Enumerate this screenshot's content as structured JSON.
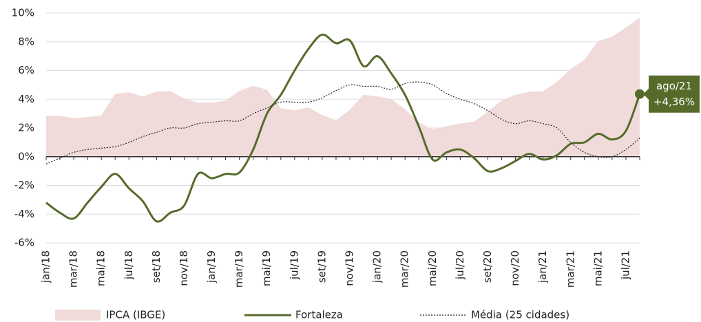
{
  "chart_data": {
    "type": "line",
    "categories": [
      "jan/18",
      null,
      "mar/18",
      null,
      "mai/18",
      null,
      "jul/18",
      null,
      "set/18",
      null,
      "nov/18",
      null,
      "jan/19",
      null,
      "mar/19",
      null,
      "mai/19",
      null,
      "jul/19",
      null,
      "set/19",
      null,
      "nov/19",
      null,
      "jan/20",
      null,
      "mar/20",
      null,
      "mai/20",
      null,
      "jul/20",
      null,
      "set/20",
      null,
      "nov/20",
      null,
      "jan/21",
      null,
      "mar/21",
      null,
      "mai/21",
      null,
      "jul/21",
      null
    ],
    "series": [
      {
        "name": "IPCA (IBGE)",
        "style": "area",
        "color": "#f0dada",
        "values": [
          2.86,
          2.84,
          2.68,
          2.76,
          2.86,
          4.39,
          4.48,
          4.19,
          4.53,
          4.56,
          4.05,
          3.75,
          3.78,
          3.89,
          4.58,
          4.94,
          4.66,
          3.37,
          3.22,
          3.43,
          2.89,
          2.54,
          3.27,
          4.31,
          4.19,
          4.01,
          3.3,
          2.4,
          1.88,
          2.13,
          2.31,
          2.44,
          3.14,
          3.92,
          4.31,
          4.52,
          4.56,
          5.2,
          6.1,
          6.76,
          8.06,
          8.35,
          8.99,
          9.68
        ]
      },
      {
        "name": "Fortaleza",
        "style": "solid",
        "color": "#566b2a",
        "values": [
          -3.2,
          -3.9,
          -4.3,
          -3.2,
          -2.1,
          -1.2,
          -2.2,
          -3.1,
          -4.5,
          -3.9,
          -3.4,
          -1.2,
          -1.5,
          -1.2,
          -1.1,
          0.5,
          3.0,
          4.3,
          6.0,
          7.5,
          8.5,
          7.9,
          8.1,
          6.3,
          7.0,
          5.8,
          4.3,
          2.1,
          -0.2,
          0.3,
          0.5,
          -0.1,
          -1.0,
          -0.8,
          -0.3,
          0.2,
          -0.2,
          0.1,
          0.9,
          1.0,
          1.6,
          1.2,
          1.8,
          4.36
        ]
      },
      {
        "name": "Média (25 cidades)",
        "style": "dotted",
        "color": "#222222",
        "values": [
          -0.5,
          -0.1,
          0.3,
          0.5,
          0.6,
          0.7,
          1.0,
          1.4,
          1.7,
          2.0,
          2.0,
          2.3,
          2.4,
          2.5,
          2.5,
          3.0,
          3.4,
          3.8,
          3.8,
          3.8,
          4.1,
          4.6,
          5.0,
          4.9,
          4.9,
          4.7,
          5.1,
          5.2,
          5.0,
          4.4,
          4.0,
          3.7,
          3.2,
          2.6,
          2.3,
          2.5,
          2.3,
          2.0,
          1.0,
          0.3,
          0.0,
          0.0,
          0.5,
          1.3
        ]
      }
    ],
    "ylim": [
      -6,
      10
    ],
    "yticks": [
      {
        "value": -6,
        "label": "-6%"
      },
      {
        "value": -4,
        "label": "-4%"
      },
      {
        "value": -2,
        "label": "-2%"
      },
      {
        "value": 0,
        "label": "0%"
      },
      {
        "value": 2,
        "label": "2%"
      },
      {
        "value": 4,
        "label": "4%"
      },
      {
        "value": 6,
        "label": "6%"
      },
      {
        "value": 8,
        "label": "8%"
      },
      {
        "value": 10,
        "label": "10%"
      }
    ],
    "grid": true,
    "legend": "bottom",
    "annotation": {
      "line1": "ago/21",
      "line2": "+4,36%",
      "series": 1,
      "index": 43
    }
  }
}
